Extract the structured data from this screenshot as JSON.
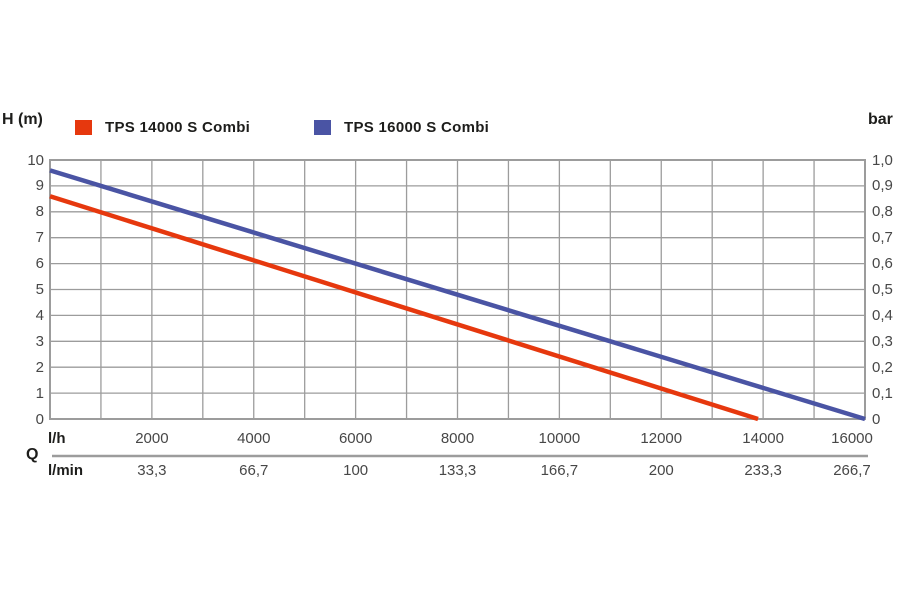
{
  "page": {
    "background": "#ffffff"
  },
  "header": {
    "left_axis_label": "H (m)",
    "right_axis_label": "bar"
  },
  "legend": {
    "items": [
      {
        "label": "TPS 14000 S Combi",
        "color": "#e6380e"
      },
      {
        "label": "TPS 16000 S Combi",
        "color": "#4a54a4"
      }
    ]
  },
  "bottom_axis": {
    "selector_label": "Q",
    "row1_label": "l/h",
    "row2_label": "l/min"
  },
  "chart_data": {
    "type": "line",
    "title": "",
    "xlabel_rows": [
      "l/h",
      "l/min"
    ],
    "ylabel_left": "H (m)",
    "ylabel_right": "bar",
    "x_range": [
      0,
      16000
    ],
    "x_gridline_step": 1000,
    "y_range": [
      0,
      10
    ],
    "y_gridline_step": 1,
    "grid_on": true,
    "grid_color": "#9c9c9c",
    "legend_position": "top",
    "x_tick_values": [
      2000,
      4000,
      6000,
      8000,
      10000,
      12000,
      14000,
      16000
    ],
    "x_tick_labels_lh": [
      "2000",
      "4000",
      "6000",
      "8000",
      "10000",
      "12000",
      "14000",
      "16000"
    ],
    "x_tick_labels_lmin": [
      "33,3",
      "66,7",
      "100",
      "133,3",
      "166,7",
      "200",
      "233,3",
      "266,7"
    ],
    "y_tick_values": [
      0,
      1,
      2,
      3,
      4,
      5,
      6,
      7,
      8,
      9,
      10
    ],
    "y_tick_labels_left": [
      "0",
      "1",
      "2",
      "3",
      "4",
      "5",
      "6",
      "7",
      "8",
      "9",
      "10"
    ],
    "y_tick_labels_right": [
      "0",
      "0,1",
      "0,2",
      "0,3",
      "0,4",
      "0,5",
      "0,6",
      "0,7",
      "0,8",
      "0,9",
      "1,0"
    ],
    "series": [
      {
        "name": "TPS 14000 S Combi",
        "color": "#e6380e",
        "points": [
          [
            0,
            8.6
          ],
          [
            13900,
            0
          ]
        ]
      },
      {
        "name": "TPS 16000 S Combi",
        "color": "#4a54a4",
        "points": [
          [
            0,
            9.6
          ],
          [
            16000,
            0
          ]
        ]
      }
    ]
  }
}
